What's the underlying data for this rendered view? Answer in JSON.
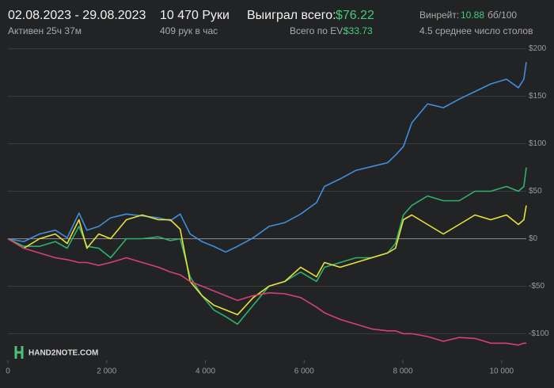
{
  "header": {
    "date_range": "02.08.2023 - 29.08.2023",
    "active": "Активен 25ч 37м",
    "hands": "10 470 Руки",
    "hands_per_hour": "409 рук в час",
    "won_label": "Выиграл всего:",
    "won_value": "$76.22",
    "ev_label": "Всего по EV:",
    "ev_value": "$33.73",
    "winrate_label": "Винрейт:",
    "winrate_value": "10.88",
    "winrate_unit": "бб/100",
    "tables": "4.5 среднее число столов"
  },
  "watermark": "HAND2NOTE.COM",
  "chart_data": {
    "type": "line",
    "x": [
      0,
      320,
      640,
      960,
      1200,
      1440,
      1600,
      1840,
      2080,
      2400,
      2720,
      3050,
      3290,
      3490,
      3690,
      3930,
      4170,
      4410,
      4650,
      4970,
      5290,
      5610,
      5930,
      6250,
      6410,
      6730,
      7050,
      7370,
      7690,
      7850,
      8010,
      8180,
      8500,
      8820,
      9140,
      9460,
      9780,
      10100,
      10340,
      10450,
      10500
    ],
    "series": [
      {
        "color": "#3f8fdc",
        "values": [
          0,
          -3,
          5,
          9,
          1,
          27,
          9,
          13,
          22,
          26,
          24,
          22,
          19,
          26,
          5,
          -3,
          -8,
          -14,
          -8,
          1,
          13,
          17,
          26,
          38,
          55,
          63,
          72,
          76,
          80,
          88,
          97,
          122,
          142,
          138,
          147,
          155,
          163,
          168,
          159,
          168,
          186
        ]
      },
      {
        "color": "#2fb36b",
        "values": [
          0,
          -8,
          -8,
          -3,
          -10,
          13,
          -8,
          -10,
          -20,
          0,
          0,
          2,
          -2,
          0,
          -40,
          -60,
          -75,
          -82,
          -90,
          -70,
          -50,
          -45,
          -35,
          -45,
          -30,
          -25,
          -20,
          -20,
          -15,
          -5,
          25,
          35,
          45,
          40,
          40,
          50,
          50,
          55,
          50,
          55,
          75
        ]
      },
      {
        "color": "#e8e23a",
        "values": [
          0,
          -10,
          0,
          5,
          -5,
          20,
          -10,
          5,
          0,
          20,
          25,
          20,
          20,
          10,
          -45,
          -60,
          -70,
          -75,
          -80,
          -62,
          -50,
          -45,
          -30,
          -40,
          -25,
          -30,
          -25,
          -20,
          -15,
          -10,
          20,
          25,
          15,
          5,
          15,
          25,
          20,
          25,
          15,
          20,
          35
        ]
      },
      {
        "color": "#d6407a",
        "values": [
          0,
          -10,
          -15,
          -20,
          -22,
          -25,
          -25,
          -28,
          -25,
          -20,
          -25,
          -30,
          -35,
          -38,
          -45,
          -50,
          -55,
          -60,
          -65,
          -60,
          -57,
          -58,
          -62,
          -72,
          -78,
          -85,
          -90,
          -95,
          -97,
          -97,
          -100,
          -100,
          -103,
          -108,
          -104,
          -105,
          -110,
          -110,
          -112,
          -110,
          -110
        ]
      }
    ],
    "xlim": [
      0,
      10500
    ],
    "ylim": [
      -128,
      208
    ],
    "xticks": [
      0,
      {
        "value": 2000,
        "label": "2 000"
      },
      {
        "value": 4000,
        "label": "4 000"
      },
      {
        "value": 6000,
        "label": "6 000"
      },
      {
        "value": 8000,
        "label": "8 000"
      },
      {
        "value": 10000,
        "label": "10 000"
      }
    ],
    "yticks": [
      {
        "value": -100,
        "label": "-$100"
      },
      {
        "value": -50,
        "label": "-$50"
      },
      {
        "value": 0,
        "label": "$0"
      },
      {
        "value": 50,
        "label": "$50"
      },
      {
        "value": 100,
        "label": "$100"
      },
      {
        "value": 150,
        "label": "$150"
      },
      {
        "value": 200,
        "label": "$200"
      }
    ],
    "grid": true
  }
}
